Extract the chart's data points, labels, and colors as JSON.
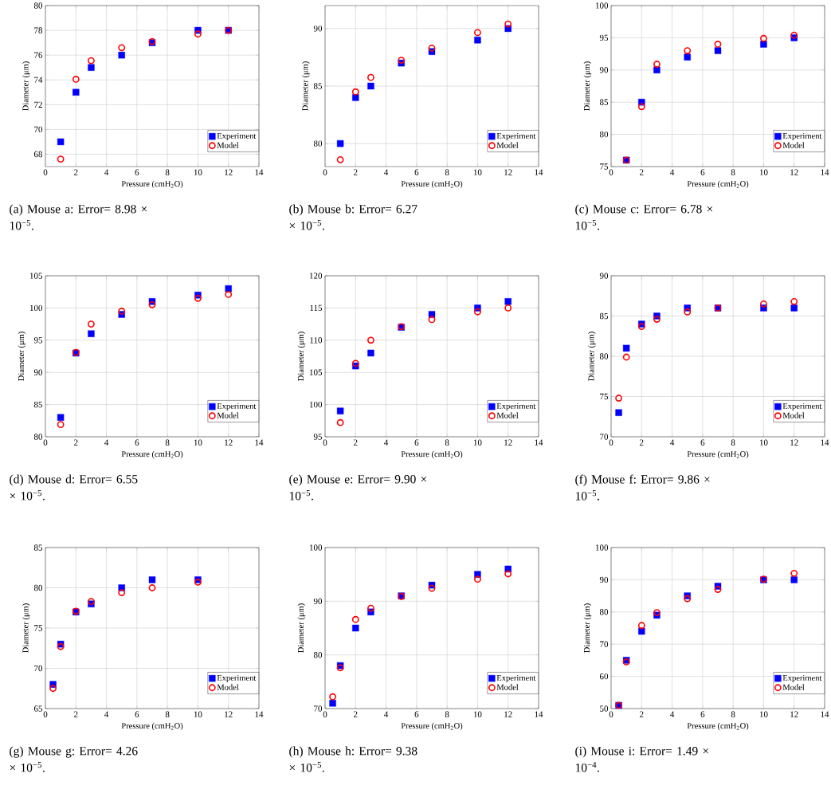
{
  "chart_data": [
    {
      "type": "scatter",
      "title": "(a) Mouse a: Error= 8.98 × 10$^{−5}$.",
      "xlabel": "Pressure (cmH$_{2}$O)",
      "ylabel": "Diameter (μm)",
      "x": [
        1,
        2,
        3,
        5,
        7,
        10,
        12
      ],
      "xlim": [
        0,
        14
      ],
      "xticks": [
        0,
        2,
        4,
        6,
        8,
        10,
        12,
        14
      ],
      "ylim": [
        67,
        80
      ],
      "yticks": [
        68,
        70,
        72,
        74,
        76,
        78,
        80
      ],
      "grid": true,
      "legend": "bottom right",
      "series": [
        {
          "name": "Experiment",
          "color": "#0000ff",
          "marker": "square",
          "values": [
            69,
            73,
            75,
            76,
            77,
            78,
            78
          ]
        },
        {
          "name": "Model",
          "color": "#ff0000",
          "marker": "circle",
          "values": [
            67.6,
            74.05,
            75.55,
            76.6,
            77.1,
            77.7,
            78.0
          ]
        }
      ]
    },
    {
      "type": "scatter",
      "title": "(b) Mouse b: Error= 6.27 × 10$^{−5}$.",
      "xlabel": "Pressure (cmH$_{2}$O)",
      "ylabel": "Diameter (μm)",
      "x": [
        1,
        2,
        3,
        5,
        7,
        10,
        12
      ],
      "xlim": [
        0,
        14
      ],
      "xticks": [
        0,
        2,
        4,
        6,
        8,
        10,
        12,
        14
      ],
      "ylim": [
        78,
        92
      ],
      "yticks": [
        80,
        85,
        90
      ],
      "grid": true,
      "legend": "bottom right",
      "series": [
        {
          "name": "Experiment",
          "color": "#0000ff",
          "marker": "square",
          "values": [
            80,
            84,
            85,
            87,
            88,
            89,
            90
          ]
        },
        {
          "name": "Model",
          "color": "#ff0000",
          "marker": "circle",
          "values": [
            78.6,
            84.5,
            85.75,
            87.25,
            88.3,
            89.65,
            90.4
          ]
        }
      ]
    },
    {
      "type": "scatter",
      "title": "(c) Mouse c: Error= 6.78 × 10$^{−5}$.",
      "xlabel": "Pressure (cmH$_{2}$O)",
      "ylabel": "Diameter (μm)",
      "x": [
        1,
        2,
        3,
        5,
        7,
        10,
        12
      ],
      "xlim": [
        0,
        14
      ],
      "xticks": [
        0,
        2,
        4,
        6,
        8,
        10,
        12,
        14
      ],
      "ylim": [
        75,
        100
      ],
      "yticks": [
        75,
        80,
        85,
        90,
        95,
        100
      ],
      "grid": true,
      "legend": "bottom right",
      "series": [
        {
          "name": "Experiment",
          "color": "#0000ff",
          "marker": "square",
          "values": [
            76,
            85,
            90,
            92,
            93,
            94,
            95
          ]
        },
        {
          "name": "Model",
          "color": "#ff0000",
          "marker": "circle",
          "values": [
            76,
            84.3,
            90.9,
            93.0,
            94.0,
            94.9,
            95.4
          ]
        }
      ]
    },
    {
      "type": "scatter",
      "title": "(d) Mouse d: Error= 6.55 × 10$^{−5}$.",
      "xlabel": "Pressure (cmH$_{2}$O)",
      "ylabel": "Diameter (μm)",
      "x": [
        1,
        2,
        3,
        5,
        7,
        10,
        12
      ],
      "xlim": [
        0,
        14
      ],
      "xticks": [
        0,
        2,
        4,
        6,
        8,
        10,
        12,
        14
      ],
      "ylim": [
        80,
        105
      ],
      "yticks": [
        80,
        85,
        90,
        95,
        100,
        105
      ],
      "grid": true,
      "legend": "bottom right",
      "series": [
        {
          "name": "Experiment",
          "color": "#0000ff",
          "marker": "square",
          "values": [
            83,
            93,
            96,
            99,
            101,
            102,
            103
          ]
        },
        {
          "name": "Model",
          "color": "#ff0000",
          "marker": "circle",
          "values": [
            81.9,
            93.1,
            97.5,
            99.5,
            100.5,
            101.5,
            102.1
          ]
        }
      ]
    },
    {
      "type": "scatter",
      "title": "(e) Mouse e: Error= 9.90 × 10$^{−5}$.",
      "xlabel": "Pressure (cmH$_{2}$O)",
      "ylabel": "Diameter (μm)",
      "x": [
        1,
        2,
        3,
        5,
        7,
        10,
        12
      ],
      "xlim": [
        0,
        14
      ],
      "xticks": [
        0,
        2,
        4,
        6,
        8,
        10,
        12,
        14
      ],
      "ylim": [
        95,
        120
      ],
      "yticks": [
        95,
        100,
        105,
        110,
        115,
        120
      ],
      "grid": true,
      "legend": "bottom right",
      "series": [
        {
          "name": "Experiment",
          "color": "#0000ff",
          "marker": "square",
          "values": [
            99,
            106,
            108,
            112,
            114,
            115,
            116
          ]
        },
        {
          "name": "Model",
          "color": "#ff0000",
          "marker": "circle",
          "values": [
            97.2,
            106.4,
            110,
            112.1,
            113.2,
            114.4,
            115.0
          ]
        }
      ]
    },
    {
      "type": "scatter",
      "title": "(f) Mouse f: Error= 9.86 × 10$^{−5}$.",
      "xlabel": "Pressure (cmH$_{2}$O)",
      "ylabel": "Diameter (μm)",
      "x": [
        0.5,
        1,
        2,
        3,
        5,
        7,
        10,
        12
      ],
      "xlim": [
        0,
        14
      ],
      "xticks": [
        0,
        2,
        4,
        6,
        8,
        10,
        12,
        14
      ],
      "ylim": [
        70,
        90
      ],
      "yticks": [
        70,
        75,
        80,
        85,
        90
      ],
      "grid": true,
      "legend": "bottom right",
      "series": [
        {
          "name": "Experiment",
          "color": "#0000ff",
          "marker": "square",
          "values": [
            73,
            81,
            84,
            85,
            86,
            86,
            86,
            86
          ]
        },
        {
          "name": "Model",
          "color": "#ff0000",
          "marker": "circle",
          "values": [
            74.8,
            79.9,
            83.7,
            84.6,
            85.5,
            86.0,
            86.5,
            86.8
          ]
        }
      ]
    },
    {
      "type": "scatter",
      "title": "(g) Mouse g: Error= 4.26 × 10$^{−5}$.",
      "xlabel": "Pressure (cmH$_{2}$O)",
      "ylabel": "Diameter (μm)",
      "x": [
        0.5,
        1,
        2,
        3,
        5,
        7,
        10
      ],
      "xlim": [
        0,
        14
      ],
      "xticks": [
        0,
        2,
        4,
        6,
        8,
        10,
        12,
        14
      ],
      "ylim": [
        65,
        85
      ],
      "yticks": [
        65,
        70,
        75,
        80,
        85
      ],
      "grid": true,
      "legend": "bottom right",
      "series": [
        {
          "name": "Experiment",
          "color": "#0000ff",
          "marker": "square",
          "values": [
            68,
            73,
            77,
            78,
            80,
            81,
            81
          ]
        },
        {
          "name": "Model",
          "color": "#ff0000",
          "marker": "circle",
          "values": [
            67.5,
            72.7,
            77.1,
            78.3,
            79.4,
            80.0,
            80.7
          ]
        }
      ]
    },
    {
      "type": "scatter",
      "title": "(h) Mouse h: Error= 9.38 × 10$^{−5}$.",
      "xlabel": "Pressure (cmH$_{2}$O)",
      "ylabel": "Diameter (μm)",
      "x": [
        0.5,
        1,
        2,
        3,
        5,
        7,
        10,
        12
      ],
      "xlim": [
        0,
        14
      ],
      "xticks": [
        0,
        2,
        4,
        6,
        8,
        10,
        12,
        14
      ],
      "ylim": [
        70,
        100
      ],
      "yticks": [
        70,
        80,
        90,
        100
      ],
      "grid": true,
      "legend": "bottom right",
      "series": [
        {
          "name": "Experiment",
          "color": "#0000ff",
          "marker": "square",
          "values": [
            71,
            78,
            85,
            88,
            91,
            93,
            95,
            96
          ]
        },
        {
          "name": "Model",
          "color": "#ff0000",
          "marker": "circle",
          "values": [
            72.2,
            77.6,
            86.6,
            88.7,
            90.9,
            92.4,
            94.1,
            95.1
          ]
        }
      ]
    },
    {
      "type": "scatter",
      "title": "(i) Mouse i: Error= 1.49 × 10$^{−4}$.",
      "xlabel": "Pressure (cmH$_{2}$O)",
      "ylabel": "Diameter (μm)",
      "x": [
        0.5,
        1,
        2,
        3,
        5,
        7,
        10,
        12
      ],
      "xlim": [
        0,
        14
      ],
      "xticks": [
        0,
        2,
        4,
        6,
        8,
        10,
        12,
        14
      ],
      "ylim": [
        50,
        100
      ],
      "yticks": [
        50,
        60,
        70,
        80,
        90,
        100
      ],
      "grid": true,
      "legend": "bottom right",
      "series": [
        {
          "name": "Experiment",
          "color": "#0000ff",
          "marker": "square",
          "values": [
            51,
            65,
            74,
            79,
            85,
            88,
            90,
            90
          ]
        },
        {
          "name": "Model",
          "color": "#ff0000",
          "marker": "circle",
          "values": [
            51,
            64.5,
            75.8,
            79.8,
            84.1,
            87,
            90.2,
            92
          ]
        }
      ]
    }
  ]
}
